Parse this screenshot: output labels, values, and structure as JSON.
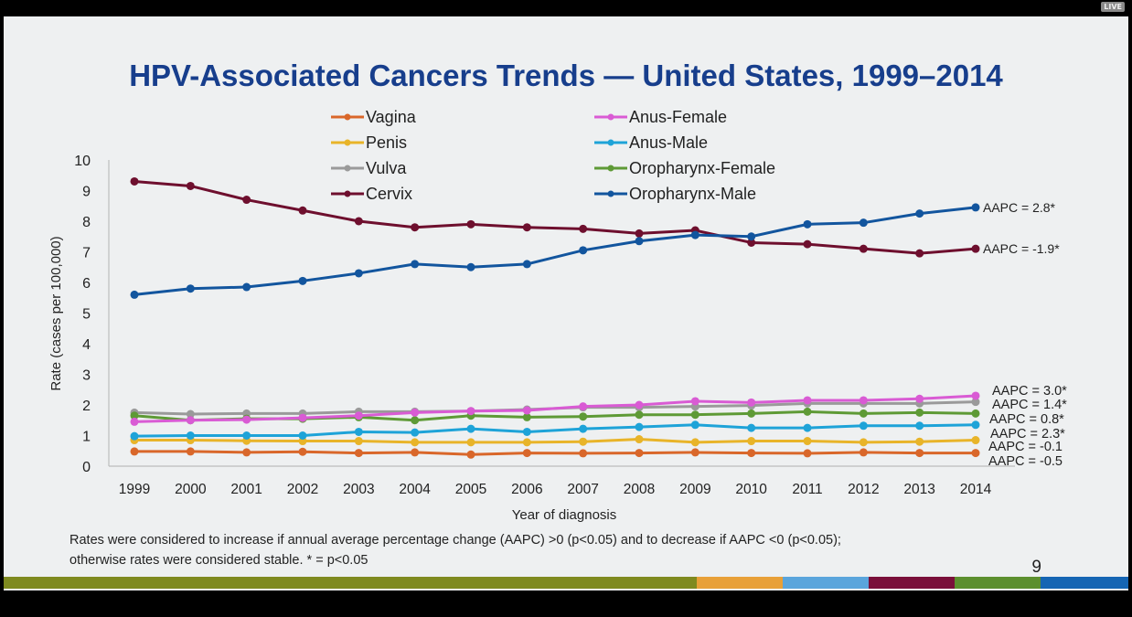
{
  "overlay": {
    "live_label": "LIVE"
  },
  "slide": {
    "title": "HPV-Associated Cancers Trends — United States, 1999–2014",
    "footnote_line1": "Rates were considered to increase if annual average percentage change (AAPC) >0 (p<0.05) and to decrease if AAPC <0 (p<0.05);",
    "footnote_line2": "otherwise rates were considered stable. * = p<0.05",
    "page_number": "9",
    "stripe_colors": [
      "#7f8a1f",
      "#e8a038",
      "#5aa5dc",
      "#7a0f3a",
      "#5c8f2e",
      "#1565b3"
    ]
  },
  "chart_data": {
    "type": "line",
    "title": "HPV-Associated Cancers Trends — United States, 1999–2014",
    "xlabel": "Year of diagnosis",
    "ylabel": "Rate (cases per 100,000)",
    "x": [
      1999,
      2000,
      2001,
      2002,
      2003,
      2004,
      2005,
      2006,
      2007,
      2008,
      2009,
      2010,
      2011,
      2012,
      2013,
      2014
    ],
    "ylim": [
      0,
      10
    ],
    "yticks": [
      0,
      1,
      2,
      3,
      4,
      5,
      6,
      7,
      8,
      9,
      10
    ],
    "grid": false,
    "legend_position": "top-center",
    "series": [
      {
        "name": "Vagina",
        "color": "#d9672a",
        "aapc": "AAPC =  -0.5",
        "values": [
          0.48,
          0.48,
          0.45,
          0.47,
          0.43,
          0.45,
          0.38,
          0.43,
          0.42,
          0.43,
          0.45,
          0.43,
          0.42,
          0.45,
          0.43,
          0.43
        ]
      },
      {
        "name": "Penis",
        "color": "#e8b429",
        "aapc": "AAPC =  -0.1",
        "values": [
          0.85,
          0.85,
          0.83,
          0.82,
          0.82,
          0.78,
          0.78,
          0.78,
          0.8,
          0.88,
          0.78,
          0.82,
          0.82,
          0.78,
          0.8,
          0.85
        ]
      },
      {
        "name": "Vulva",
        "color": "#9a9a9a",
        "aapc": "AAPC = 1.4*",
        "values": [
          1.75,
          1.7,
          1.72,
          1.72,
          1.78,
          1.78,
          1.8,
          1.85,
          1.92,
          1.92,
          1.95,
          1.98,
          2.05,
          2.05,
          2.05,
          2.1
        ]
      },
      {
        "name": "Cervix",
        "color": "#6e0f2e",
        "aapc": "AAPC =  -1.9*",
        "values": [
          9.3,
          9.15,
          8.7,
          8.35,
          8.0,
          7.8,
          7.9,
          7.8,
          7.75,
          7.6,
          7.7,
          7.3,
          7.25,
          7.1,
          6.95,
          7.1
        ]
      },
      {
        "name": "Anus-Female",
        "color": "#d95bd4",
        "aapc": "AAPC = 3.0*",
        "values": [
          1.45,
          1.5,
          1.52,
          1.58,
          1.65,
          1.75,
          1.8,
          1.82,
          1.95,
          2.0,
          2.12,
          2.08,
          2.15,
          2.15,
          2.2,
          2.3
        ]
      },
      {
        "name": "Anus-Male",
        "color": "#1ea3d8",
        "aapc": "AAPC =  2.3*",
        "values": [
          0.98,
          1.0,
          1.0,
          1.0,
          1.12,
          1.1,
          1.22,
          1.12,
          1.22,
          1.28,
          1.35,
          1.25,
          1.25,
          1.32,
          1.32,
          1.35
        ]
      },
      {
        "name": "Oropharynx-Female",
        "color": "#5e9a36",
        "aapc": "AAPC = 0.8*",
        "values": [
          1.65,
          1.5,
          1.55,
          1.55,
          1.6,
          1.5,
          1.65,
          1.6,
          1.62,
          1.68,
          1.68,
          1.72,
          1.78,
          1.72,
          1.75,
          1.72
        ]
      },
      {
        "name": "Oropharynx-Male",
        "color": "#12559e",
        "aapc": "AAPC = 2.8*",
        "values": [
          5.6,
          5.8,
          5.85,
          6.05,
          6.3,
          6.6,
          6.5,
          6.6,
          7.05,
          7.35,
          7.55,
          7.5,
          7.9,
          7.95,
          8.25,
          8.45
        ]
      }
    ],
    "annotations_order_bottom_region": [
      "Anus-Female",
      "Vulva",
      "Oropharynx-Female",
      "Anus-Male",
      "Penis",
      "Vagina"
    ]
  }
}
